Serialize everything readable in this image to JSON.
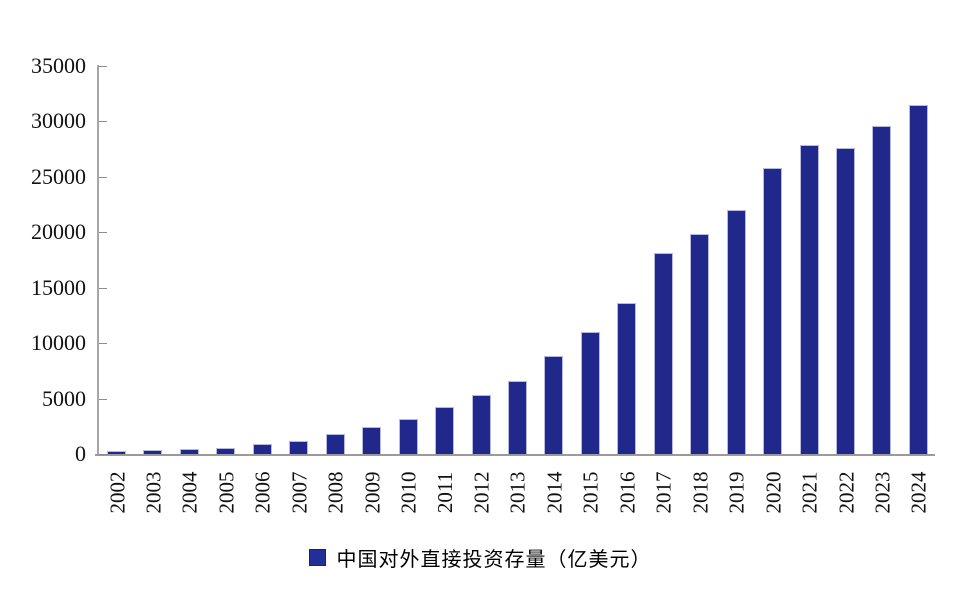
{
  "chart_data": {
    "type": "bar",
    "title": "",
    "legend": "中国对外直接投资存量（亿美元）",
    "legend_position": "bottom",
    "xlabel": "",
    "ylabel": "",
    "categories": [
      "2002",
      "2003",
      "2004",
      "2005",
      "2006",
      "2007",
      "2008",
      "2009",
      "2010",
      "2011",
      "2012",
      "2013",
      "2014",
      "2015",
      "2016",
      "2017",
      "2018",
      "2019",
      "2020",
      "2021",
      "2022",
      "2023",
      "2024"
    ],
    "values": [
      299,
      332,
      448,
      572,
      906,
      1179,
      1839,
      2458,
      3172,
      4248,
      5319,
      6605,
      8826,
      10979,
      13574,
      18090,
      19822,
      21989,
      25807,
      27852,
      27547,
      29554,
      31433
    ],
    "ylim": [
      0,
      35000
    ],
    "yticks": [
      0,
      5000,
      10000,
      15000,
      20000,
      25000,
      30000,
      35000
    ],
    "grid": false,
    "colors": {
      "bar_fill": "#20288c",
      "bar_border": "#b6badf",
      "legend_swatch": "#232e96",
      "axis": "#9a9a9a",
      "text": "#111111",
      "background": "#ffffff"
    }
  }
}
